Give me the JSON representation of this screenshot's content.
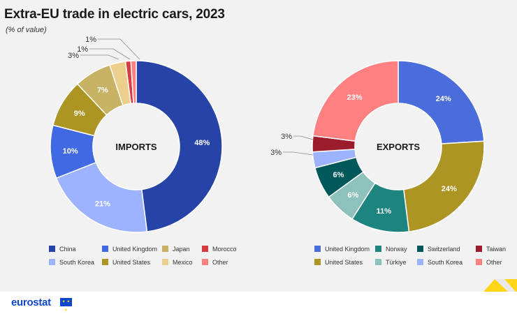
{
  "title": "Extra-EU trade in electric cars, 2023",
  "subtitle": "(% of value)",
  "brand": {
    "logo": "eurostat",
    "flag_icon": "eu-flag-icon"
  },
  "chart_data": [
    {
      "type": "pie",
      "center_label": "IMPORTS",
      "slices": [
        {
          "name": "China",
          "value": 48,
          "label": "48%",
          "color": "#2644a8"
        },
        {
          "name": "South Korea",
          "value": 21,
          "label": "21%",
          "color": "#9db3ff"
        },
        {
          "name": "United Kingdom",
          "value": 10,
          "label": "10%",
          "color": "#4169e1"
        },
        {
          "name": "United States",
          "value": 9,
          "label": "9%",
          "color": "#ad9524"
        },
        {
          "name": "Japan",
          "value": 7,
          "label": "7%",
          "color": "#c8b264"
        },
        {
          "name": "Mexico",
          "value": 3,
          "label": "3%",
          "color": "#eccf8d"
        },
        {
          "name": "Morocco",
          "value": 1,
          "label": "1%",
          "color": "#d73c42"
        },
        {
          "name": "Other",
          "value": 1,
          "label": "1%",
          "color": "#ff8080"
        }
      ],
      "legend": [
        "China",
        "United Kingdom",
        "Japan",
        "Morocco",
        "South Korea",
        "United States",
        "Mexico",
        "Other"
      ],
      "legend_placement": "bottom"
    },
    {
      "type": "pie",
      "center_label": "EXPORTS",
      "slices": [
        {
          "name": "United Kingdom",
          "value": 24,
          "label": "24%",
          "color": "#4a6ddb"
        },
        {
          "name": "United States",
          "value": 24,
          "label": "24%",
          "color": "#ad9524"
        },
        {
          "name": "Norway",
          "value": 11,
          "label": "11%",
          "color": "#1e8480"
        },
        {
          "name": "Türkiye",
          "value": 6,
          "label": "6%",
          "color": "#8cc1bc"
        },
        {
          "name": "Switzerland",
          "value": 6,
          "label": "6%",
          "color": "#00585a"
        },
        {
          "name": "South Korea",
          "value": 3,
          "label": "3%",
          "color": "#9db3ff"
        },
        {
          "name": "Taiwan",
          "value": 3,
          "label": "3%",
          "color": "#9b1c2b"
        },
        {
          "name": "Other",
          "value": 23,
          "label": "23%",
          "color": "#ff8080"
        }
      ],
      "legend": [
        "United Kingdom",
        "Norway",
        "Switzerland",
        "Taiwan",
        "United States",
        "Türkiye",
        "South Korea",
        "Other"
      ],
      "legend_placement": "bottom"
    }
  ]
}
